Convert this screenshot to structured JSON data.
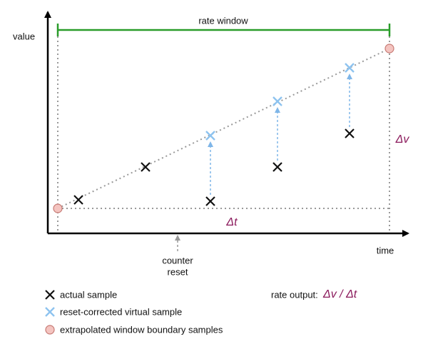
{
  "axes": {
    "y_label": "value",
    "x_label": "time"
  },
  "window_label": "rate window",
  "delta_v": "Δv",
  "delta_t": "Δt",
  "annotation": [
    "counter",
    "reset"
  ],
  "legend": [
    "actual sample",
    "reset-corrected virtual sample",
    "extrapolated window boundary samples"
  ],
  "rate_output": {
    "label": "rate output:",
    "formula": "Δv / Δt"
  }
}
